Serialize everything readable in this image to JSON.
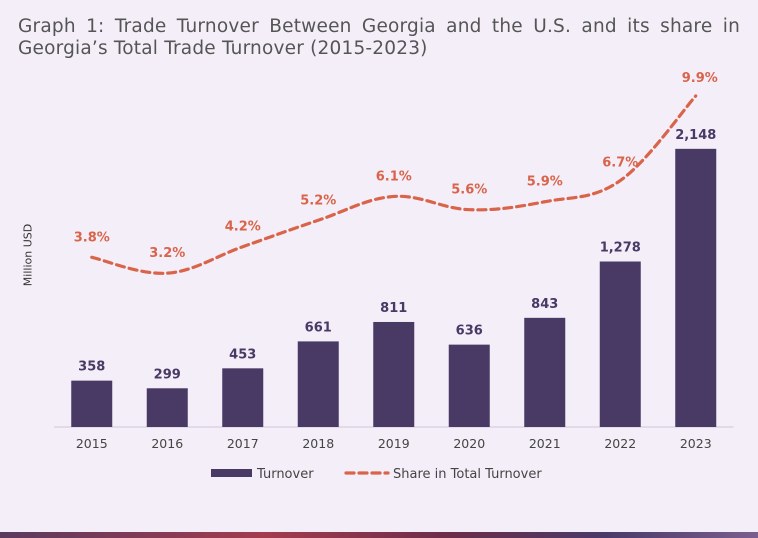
{
  "title": "Graph 1: Trade Turnover Between Georgia and the U.S. and its share in Georgia’s Total Trade Turnover (2015-2023)",
  "colors": {
    "bar": "#483965",
    "line": "#d9644a",
    "axis": "#cfc6d8",
    "tick": "#444444"
  },
  "chart_data": {
    "type": "bar",
    "title": "Graph 1: Trade Turnover Between Georgia and the U.S. and its share in Georgia’s Total Trade Turnover (2015-2023)",
    "ylabel": "Million USD",
    "categories": [
      "2015",
      "2016",
      "2017",
      "2018",
      "2019",
      "2020",
      "2021",
      "2022",
      "2023"
    ],
    "series": [
      {
        "name": "Turnover",
        "type": "bar",
        "values": [
          358,
          299,
          453,
          661,
          811,
          636,
          843,
          1278,
          2148
        ],
        "labels": [
          "358",
          "299",
          "453",
          "661",
          "811",
          "636",
          "843",
          "1,278",
          "2,148"
        ]
      },
      {
        "name": "Share in Total Turnover",
        "type": "line",
        "style": "dashed",
        "values": [
          3.8,
          3.2,
          4.2,
          5.2,
          6.1,
          5.6,
          5.9,
          6.7,
          9.9
        ],
        "labels": [
          "3.8%",
          "3.2%",
          "4.2%",
          "5.2%",
          "6.1%",
          "5.6%",
          "5.9%",
          "6.7%",
          "9.9%"
        ]
      }
    ],
    "legend": "bottom"
  }
}
